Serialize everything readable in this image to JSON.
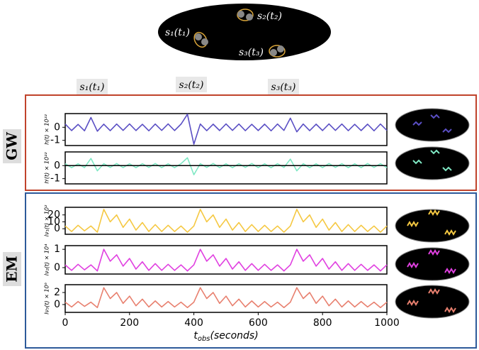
{
  "diagram": {
    "sources": [
      "s₁(t₁)",
      "s₂(t₂)",
      "s₃(t₃)"
    ]
  },
  "markers": [
    "s₁(t₁)",
    "s₂(t₂)",
    "s₃(t₃)"
  ],
  "groups": [
    "GW",
    "EM"
  ],
  "chart_data": [
    {
      "type": "line",
      "ylabel": "h(t) × 10²²",
      "ylim": [
        -1.4,
        1.05
      ],
      "yticks": [
        0,
        -1
      ],
      "xlim": [
        0,
        1000
      ],
      "x": [
        0,
        20,
        40,
        60,
        80,
        100,
        120,
        140,
        160,
        180,
        200,
        220,
        240,
        260,
        280,
        300,
        320,
        340,
        360,
        380,
        400,
        420,
        440,
        460,
        480,
        500,
        520,
        540,
        560,
        580,
        600,
        620,
        640,
        660,
        680,
        700,
        720,
        740,
        760,
        780,
        800,
        820,
        840,
        860,
        880,
        900,
        920,
        940,
        960,
        980,
        1000
      ],
      "series": [
        {
          "color": "#5a4fc4",
          "values": [
            0.25,
            -0.25,
            0.22,
            -0.27,
            0.75,
            -0.3,
            0.24,
            -0.26,
            0.25,
            -0.24,
            0.26,
            -0.25,
            0.23,
            -0.27,
            0.25,
            -0.24,
            0.26,
            -0.25,
            0.24,
            1.0,
            -1.3,
            0.25,
            -0.26,
            0.24,
            -0.25,
            0.26,
            -0.24,
            0.25,
            -0.26,
            0.23,
            -0.25,
            0.24,
            -0.27,
            0.25,
            -0.24,
            0.7,
            -0.35,
            0.25,
            -0.26,
            0.24,
            -0.25,
            0.26,
            -0.24,
            0.25,
            -0.26,
            0.23,
            -0.25,
            0.24,
            -0.27,
            0.25,
            -0.24
          ]
        }
      ]
    },
    {
      "type": "line",
      "ylabel": "hᴵ(t) × 10²²",
      "ylim": [
        -1.4,
        1.05
      ],
      "yticks": [
        0,
        -1
      ],
      "xlim": [
        0,
        1000
      ],
      "zero_line": true,
      "x": [
        0,
        20,
        40,
        60,
        80,
        100,
        120,
        140,
        160,
        180,
        200,
        220,
        240,
        260,
        280,
        300,
        320,
        340,
        360,
        380,
        400,
        420,
        440,
        460,
        480,
        500,
        520,
        540,
        560,
        580,
        600,
        620,
        640,
        660,
        680,
        700,
        720,
        740,
        760,
        780,
        800,
        820,
        840,
        860,
        880,
        900,
        920,
        940,
        960,
        980,
        1000
      ],
      "series": [
        {
          "color": "#7fe8c4",
          "values": [
            0.15,
            -0.16,
            0.14,
            -0.15,
            0.55,
            -0.4,
            0.15,
            -0.14,
            0.16,
            -0.15,
            0.14,
            -0.16,
            0.15,
            -0.14,
            0.16,
            -0.15,
            0.14,
            -0.16,
            0.15,
            0.6,
            -0.7,
            0.15,
            -0.14,
            0.16,
            -0.15,
            0.14,
            -0.16,
            0.15,
            -0.14,
            0.16,
            -0.15,
            0.14,
            -0.16,
            0.15,
            -0.14,
            0.5,
            -0.4,
            0.15,
            -0.16,
            0.14,
            -0.15,
            0.16,
            -0.14,
            0.15,
            -0.16,
            0.14,
            -0.15,
            0.16,
            -0.14,
            0.15,
            -0.16
          ]
        }
      ]
    },
    {
      "type": "line",
      "ylabel": "Iν₁(t) × 10²",
      "ylim": [
        -8,
        31
      ],
      "yticks": [
        0,
        10,
        20
      ],
      "xlim": [
        0,
        1000
      ],
      "x": [
        0,
        20,
        40,
        60,
        80,
        100,
        120,
        140,
        160,
        180,
        200,
        220,
        240,
        260,
        280,
        300,
        320,
        340,
        360,
        380,
        400,
        420,
        440,
        460,
        480,
        500,
        520,
        540,
        560,
        580,
        600,
        620,
        640,
        660,
        680,
        700,
        720,
        740,
        760,
        780,
        800,
        820,
        840,
        860,
        880,
        900,
        920,
        940,
        960,
        980,
        1000
      ],
      "series": [
        {
          "color": "#f5c842",
          "values": [
            4,
            -4,
            5,
            -3,
            4,
            -5,
            28,
            10,
            20,
            2,
            14,
            -2,
            9,
            -4,
            6,
            -4,
            5,
            -4,
            4,
            -5,
            4,
            28,
            10,
            20,
            2,
            14,
            -2,
            9,
            -4,
            6,
            -4,
            5,
            -4,
            4,
            -5,
            4,
            28,
            10,
            20,
            2,
            14,
            -2,
            9,
            -4,
            6,
            -4,
            5,
            -4,
            4,
            -5,
            4
          ]
        }
      ]
    },
    {
      "type": "line",
      "ylabel": "Iν₂(t) × 10⁴",
      "ylim": [
        -0.35,
        1.2
      ],
      "yticks": [
        0,
        1
      ],
      "xlim": [
        0,
        1000
      ],
      "x": [
        0,
        20,
        40,
        60,
        80,
        100,
        120,
        140,
        160,
        180,
        200,
        220,
        240,
        260,
        280,
        300,
        320,
        340,
        360,
        380,
        400,
        420,
        440,
        460,
        480,
        500,
        520,
        540,
        560,
        580,
        600,
        620,
        640,
        660,
        680,
        700,
        720,
        740,
        760,
        780,
        800,
        820,
        840,
        860,
        880,
        900,
        920,
        940,
        960,
        980,
        1000
      ],
      "series": [
        {
          "color": "#e040e0",
          "values": [
            0.15,
            -0.15,
            0.18,
            -0.12,
            0.15,
            -0.18,
            1.0,
            0.35,
            0.7,
            0.08,
            0.5,
            -0.08,
            0.32,
            -0.15,
            0.22,
            -0.15,
            0.18,
            -0.15,
            0.15,
            -0.18,
            0.15,
            1.0,
            0.35,
            0.7,
            0.08,
            0.5,
            -0.08,
            0.32,
            -0.15,
            0.22,
            -0.15,
            0.18,
            -0.15,
            0.15,
            -0.18,
            0.15,
            1.0,
            0.35,
            0.7,
            0.08,
            0.5,
            -0.08,
            0.32,
            -0.15,
            0.22,
            -0.15,
            0.18,
            -0.15,
            0.15,
            -0.18,
            0.15
          ]
        }
      ]
    },
    {
      "type": "line",
      "ylabel": "Iν₃(t) × 10⁶",
      "ylim": [
        -1.3,
        3.3
      ],
      "yticks": [
        0,
        2
      ],
      "xlim": [
        0,
        1000
      ],
      "xticks": [
        0,
        200,
        400,
        600,
        800,
        1000
      ],
      "xlabel": "t",
      "xlabel_sub": "obs",
      "xlabel_rest": "(seconds)",
      "x": [
        0,
        20,
        40,
        60,
        80,
        100,
        120,
        140,
        160,
        180,
        200,
        220,
        240,
        260,
        280,
        300,
        320,
        340,
        360,
        380,
        400,
        420,
        440,
        460,
        480,
        500,
        520,
        540,
        560,
        580,
        600,
        620,
        640,
        660,
        680,
        700,
        720,
        740,
        760,
        780,
        800,
        820,
        840,
        860,
        880,
        900,
        920,
        940,
        960,
        980,
        1000
      ],
      "series": [
        {
          "color": "#e8806f",
          "values": [
            0.4,
            -0.4,
            0.5,
            -0.3,
            0.4,
            -0.5,
            2.8,
            1.0,
            2.0,
            0.2,
            1.4,
            -0.2,
            0.9,
            -0.4,
            0.6,
            -0.4,
            0.5,
            -0.4,
            0.4,
            -0.5,
            0.4,
            2.8,
            1.0,
            2.0,
            0.2,
            1.4,
            -0.2,
            0.9,
            -0.4,
            0.6,
            -0.4,
            0.5,
            -0.4,
            0.4,
            -0.5,
            0.4,
            2.8,
            1.0,
            2.0,
            0.2,
            1.4,
            -0.2,
            0.9,
            -0.4,
            0.6,
            -0.4,
            0.5,
            -0.4,
            0.4,
            -0.5,
            0.4
          ]
        }
      ]
    }
  ]
}
